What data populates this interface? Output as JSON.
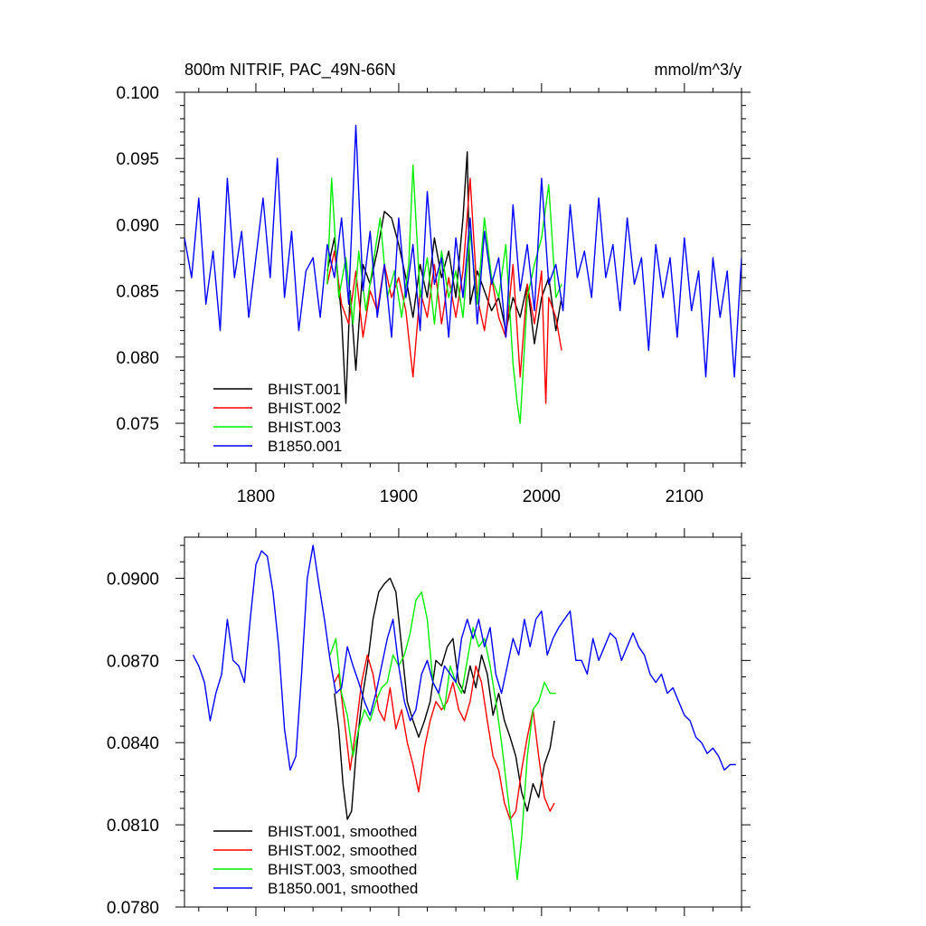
{
  "chart_data": [
    {
      "type": "line",
      "title_left": "800m NITRIF, PAC_49N-66N",
      "title_right": "mmol/m^3/y",
      "xlim": [
        1750,
        2140
      ],
      "ylim": [
        0.072,
        0.1
      ],
      "x_ticks": [
        1800,
        1900,
        2000,
        2100
      ],
      "x_tick_labels": [
        "1800",
        "1900",
        "2000",
        "2100"
      ],
      "y_ticks": [
        0.075,
        0.08,
        0.085,
        0.09,
        0.095,
        0.1
      ],
      "y_tick_labels": [
        "0.075",
        "0.080",
        "0.085",
        "0.090",
        "0.095",
        "0.100"
      ],
      "legend_position": "bottom-left",
      "series": [
        {
          "name": "BHIST.001",
          "color": "#000000",
          "x": [
            1850,
            1855,
            1860,
            1863,
            1866,
            1870,
            1875,
            1880,
            1885,
            1890,
            1895,
            1900,
            1905,
            1910,
            1915,
            1920,
            1925,
            1930,
            1935,
            1940,
            1945,
            1948,
            1950,
            1955,
            1960,
            1965,
            1970,
            1975,
            1980,
            1985,
            1990,
            1995,
            2000,
            2005,
            2010,
            2014
          ],
          "y": [
            0.0865,
            0.089,
            0.083,
            0.0765,
            0.085,
            0.079,
            0.087,
            0.0855,
            0.088,
            0.091,
            0.0905,
            0.0885,
            0.086,
            0.083,
            0.087,
            0.0845,
            0.089,
            0.086,
            0.088,
            0.0845,
            0.0905,
            0.0955,
            0.084,
            0.0865,
            0.085,
            0.0835,
            0.0845,
            0.082,
            0.0845,
            0.083,
            0.0855,
            0.081,
            0.0845,
            0.086,
            0.082,
            0.0845
          ]
        },
        {
          "name": "BHIST.002",
          "color": "#ff0000",
          "x": [
            1850,
            1855,
            1860,
            1865,
            1870,
            1875,
            1880,
            1885,
            1890,
            1895,
            1900,
            1905,
            1910,
            1915,
            1920,
            1925,
            1930,
            1935,
            1940,
            1945,
            1950,
            1955,
            1960,
            1965,
            1970,
            1975,
            1980,
            1985,
            1990,
            1995,
            2000,
            2003,
            2005,
            2010,
            2014
          ],
          "y": [
            0.0855,
            0.088,
            0.084,
            0.0825,
            0.0865,
            0.0815,
            0.085,
            0.0835,
            0.087,
            0.0845,
            0.086,
            0.0835,
            0.0785,
            0.085,
            0.083,
            0.087,
            0.0825,
            0.086,
            0.083,
            0.0865,
            0.0935,
            0.0845,
            0.082,
            0.086,
            0.083,
            0.0815,
            0.087,
            0.0785,
            0.0855,
            0.0825,
            0.0865,
            0.0765,
            0.0845,
            0.083,
            0.0805
          ]
        },
        {
          "name": "BHIST.003",
          "color": "#00ee00",
          "x": [
            1850,
            1853,
            1858,
            1863,
            1868,
            1872,
            1877,
            1882,
            1887,
            1892,
            1897,
            1902,
            1907,
            1910,
            1915,
            1920,
            1925,
            1930,
            1935,
            1940,
            1945,
            1950,
            1955,
            1960,
            1965,
            1970,
            1975,
            1980,
            1983,
            1985,
            1990,
            1995,
            2000,
            2005,
            2010,
            2014
          ],
          "y": [
            0.0855,
            0.0935,
            0.0845,
            0.0875,
            0.0825,
            0.088,
            0.0835,
            0.087,
            0.0905,
            0.0845,
            0.0865,
            0.083,
            0.087,
            0.0945,
            0.0845,
            0.0875,
            0.0825,
            0.088,
            0.0845,
            0.0865,
            0.083,
            0.0895,
            0.084,
            0.0905,
            0.086,
            0.0845,
            0.0885,
            0.0795,
            0.0765,
            0.075,
            0.0845,
            0.087,
            0.089,
            0.093,
            0.0845,
            0.0855
          ]
        },
        {
          "name": "B1850.001",
          "color": "#0000ff",
          "x": [
            1750,
            1755,
            1760,
            1765,
            1770,
            1775,
            1780,
            1785,
            1790,
            1795,
            1800,
            1805,
            1810,
            1815,
            1820,
            1825,
            1830,
            1835,
            1840,
            1845,
            1850,
            1855,
            1860,
            1865,
            1870,
            1875,
            1880,
            1885,
            1890,
            1895,
            1900,
            1905,
            1910,
            1915,
            1920,
            1925,
            1930,
            1935,
            1940,
            1945,
            1950,
            1955,
            1960,
            1965,
            1970,
            1975,
            1980,
            1985,
            1990,
            1995,
            2000,
            2005,
            2010,
            2015,
            2020,
            2025,
            2030,
            2035,
            2040,
            2045,
            2050,
            2055,
            2060,
            2065,
            2070,
            2075,
            2080,
            2085,
            2090,
            2095,
            2100,
            2105,
            2110,
            2115,
            2120,
            2125,
            2130,
            2135,
            2140
          ],
          "y": [
            0.089,
            0.086,
            0.092,
            0.084,
            0.088,
            0.082,
            0.0935,
            0.086,
            0.0895,
            0.083,
            0.0875,
            0.092,
            0.086,
            0.095,
            0.0845,
            0.0895,
            0.082,
            0.0865,
            0.0875,
            0.083,
            0.0885,
            0.086,
            0.0905,
            0.084,
            0.0975,
            0.085,
            0.0895,
            0.083,
            0.087,
            0.0815,
            0.0905,
            0.0845,
            0.0885,
            0.082,
            0.0925,
            0.0855,
            0.0875,
            0.0815,
            0.089,
            0.0845,
            0.0905,
            0.0825,
            0.0895,
            0.0855,
            0.0875,
            0.0815,
            0.0915,
            0.085,
            0.0885,
            0.0835,
            0.0935,
            0.0855,
            0.087,
            0.0835,
            0.0915,
            0.086,
            0.088,
            0.0845,
            0.092,
            0.086,
            0.0885,
            0.0835,
            0.0905,
            0.0855,
            0.0875,
            0.0805,
            0.0885,
            0.0845,
            0.0875,
            0.0815,
            0.089,
            0.0835,
            0.0865,
            0.0785,
            0.0875,
            0.083,
            0.0865,
            0.0785,
            0.0875
          ]
        }
      ],
      "legend": [
        "BHIST.001",
        "BHIST.002",
        "BHIST.003",
        "B1850.001"
      ]
    },
    {
      "type": "line",
      "xlim": [
        1750,
        2140
      ],
      "ylim": [
        0.078,
        0.0915
      ],
      "x_ticks": [
        1800,
        1900,
        2000,
        2100
      ],
      "y_ticks": [
        0.078,
        0.081,
        0.084,
        0.087,
        0.09
      ],
      "y_tick_labels": [
        "0.0780",
        "0.0810",
        "0.0840",
        "0.0870",
        "0.0900"
      ],
      "legend_position": "bottom-left",
      "series": [
        {
          "name": "BHIST.001, smoothed",
          "color": "#000000",
          "x": [
            1855,
            1858,
            1861,
            1864,
            1867,
            1870,
            1874,
            1878,
            1882,
            1886,
            1890,
            1894,
            1898,
            1902,
            1906,
            1910,
            1914,
            1918,
            1922,
            1926,
            1930,
            1934,
            1938,
            1942,
            1946,
            1950,
            1954,
            1958,
            1962,
            1966,
            1970,
            1974,
            1978,
            1982,
            1986,
            1990,
            1994,
            1998,
            2002,
            2006,
            2009
          ],
          "y": [
            0.0858,
            0.0845,
            0.0825,
            0.0812,
            0.0815,
            0.0835,
            0.0855,
            0.0868,
            0.0885,
            0.0895,
            0.0898,
            0.09,
            0.0895,
            0.0875,
            0.0855,
            0.0848,
            0.0842,
            0.0848,
            0.0855,
            0.087,
            0.0868,
            0.0875,
            0.0878,
            0.0862,
            0.0858,
            0.0868,
            0.086,
            0.0872,
            0.0865,
            0.085,
            0.0858,
            0.0848,
            0.0842,
            0.0835,
            0.0822,
            0.0815,
            0.0825,
            0.082,
            0.0832,
            0.0838,
            0.0848
          ]
        },
        {
          "name": "BHIST.002, smoothed",
          "color": "#ff0000",
          "x": [
            1855,
            1858,
            1862,
            1866,
            1870,
            1874,
            1878,
            1882,
            1886,
            1890,
            1894,
            1898,
            1902,
            1906,
            1910,
            1914,
            1918,
            1922,
            1926,
            1930,
            1934,
            1938,
            1942,
            1946,
            1950,
            1954,
            1958,
            1962,
            1966,
            1970,
            1974,
            1978,
            1982,
            1986,
            1990,
            1994,
            1998,
            2002,
            2006,
            2009
          ],
          "y": [
            0.0862,
            0.0865,
            0.0848,
            0.083,
            0.0845,
            0.0862,
            0.0872,
            0.0865,
            0.0852,
            0.0848,
            0.086,
            0.0845,
            0.0852,
            0.084,
            0.0832,
            0.0822,
            0.0838,
            0.0848,
            0.0855,
            0.0852,
            0.0855,
            0.0862,
            0.0852,
            0.0848,
            0.0855,
            0.0868,
            0.0862,
            0.0848,
            0.0835,
            0.083,
            0.0818,
            0.0812,
            0.0815,
            0.083,
            0.0842,
            0.0852,
            0.0835,
            0.082,
            0.0815,
            0.0818
          ]
        },
        {
          "name": "BHIST.003, smoothed",
          "color": "#00ee00",
          "x": [
            1852,
            1856,
            1860,
            1864,
            1868,
            1872,
            1876,
            1880,
            1884,
            1888,
            1892,
            1896,
            1900,
            1904,
            1908,
            1912,
            1916,
            1920,
            1924,
            1928,
            1932,
            1936,
            1940,
            1944,
            1948,
            1952,
            1956,
            1960,
            1964,
            1968,
            1972,
            1976,
            1980,
            1983,
            1986,
            1990,
            1994,
            1998,
            2002,
            2006,
            2010
          ],
          "y": [
            0.0872,
            0.0878,
            0.0858,
            0.085,
            0.0835,
            0.0845,
            0.0852,
            0.0848,
            0.0855,
            0.086,
            0.0862,
            0.0872,
            0.0868,
            0.0872,
            0.088,
            0.0892,
            0.0895,
            0.0885,
            0.0862,
            0.0858,
            0.0852,
            0.0868,
            0.0862,
            0.0858,
            0.087,
            0.0882,
            0.0875,
            0.0878,
            0.0868,
            0.0855,
            0.084,
            0.0822,
            0.0805,
            0.079,
            0.0805,
            0.0835,
            0.0852,
            0.0855,
            0.0862,
            0.0858,
            0.0858
          ]
        },
        {
          "name": "B1850.001, smoothed",
          "color": "#0000ff",
          "x": [
            1756,
            1760,
            1764,
            1768,
            1772,
            1776,
            1780,
            1784,
            1788,
            1792,
            1796,
            1800,
            1804,
            1808,
            1812,
            1816,
            1820,
            1824,
            1828,
            1832,
            1836,
            1840,
            1844,
            1848,
            1852,
            1856,
            1860,
            1864,
            1868,
            1872,
            1876,
            1880,
            1884,
            1888,
            1892,
            1896,
            1900,
            1904,
            1908,
            1912,
            1916,
            1920,
            1924,
            1928,
            1932,
            1936,
            1940,
            1944,
            1948,
            1952,
            1956,
            1960,
            1964,
            1968,
            1972,
            1976,
            1980,
            1984,
            1988,
            1992,
            1996,
            2000,
            2004,
            2008,
            2012,
            2016,
            2020,
            2024,
            2028,
            2032,
            2036,
            2040,
            2044,
            2048,
            2052,
            2056,
            2060,
            2064,
            2068,
            2072,
            2076,
            2080,
            2084,
            2088,
            2092,
            2096,
            2100,
            2104,
            2108,
            2112,
            2116,
            2120,
            2124,
            2128,
            2132,
            2136
          ],
          "y": [
            0.0872,
            0.0868,
            0.0862,
            0.0848,
            0.0858,
            0.0865,
            0.0885,
            0.087,
            0.0868,
            0.0862,
            0.0885,
            0.0905,
            0.091,
            0.0908,
            0.0895,
            0.0875,
            0.0845,
            0.083,
            0.0835,
            0.0865,
            0.09,
            0.0912,
            0.0898,
            0.0885,
            0.087,
            0.0858,
            0.086,
            0.0875,
            0.0868,
            0.0862,
            0.0855,
            0.085,
            0.0858,
            0.0868,
            0.0878,
            0.0885,
            0.0868,
            0.0855,
            0.0848,
            0.0852,
            0.0865,
            0.087,
            0.0862,
            0.0858,
            0.0868,
            0.0865,
            0.0862,
            0.0878,
            0.0885,
            0.0878,
            0.0885,
            0.0875,
            0.0882,
            0.0865,
            0.0858,
            0.0868,
            0.0878,
            0.0872,
            0.0885,
            0.0875,
            0.0885,
            0.0888,
            0.0872,
            0.0878,
            0.0882,
            0.0885,
            0.0888,
            0.087,
            0.087,
            0.0865,
            0.0878,
            0.087,
            0.0875,
            0.088,
            0.0878,
            0.087,
            0.0875,
            0.088,
            0.0875,
            0.0872,
            0.0865,
            0.0862,
            0.0865,
            0.0858,
            0.086,
            0.0855,
            0.085,
            0.0848,
            0.0842,
            0.084,
            0.0836,
            0.0838,
            0.0835,
            0.083,
            0.0832,
            0.0832
          ]
        }
      ],
      "legend": [
        "BHIST.001, smoothed",
        "BHIST.002, smoothed",
        "BHIST.003, smoothed",
        "B1850.001, smoothed"
      ]
    }
  ]
}
